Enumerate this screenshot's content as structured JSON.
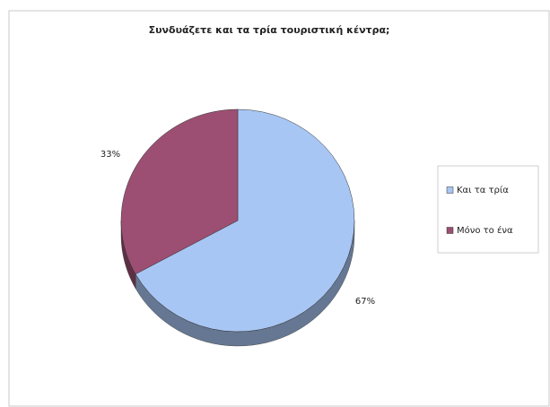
{
  "chart_data": {
    "type": "pie",
    "title": "Συνδυάζετε και τα τρία τουριστική κέντρα;",
    "categories": [
      "Και τα τρία",
      "Μόνο το ένα"
    ],
    "values": [
      67,
      33
    ],
    "value_labels": [
      "67%",
      "33%"
    ],
    "colors": [
      "#a8c6f4",
      "#9c4f72"
    ],
    "legend": "right"
  }
}
